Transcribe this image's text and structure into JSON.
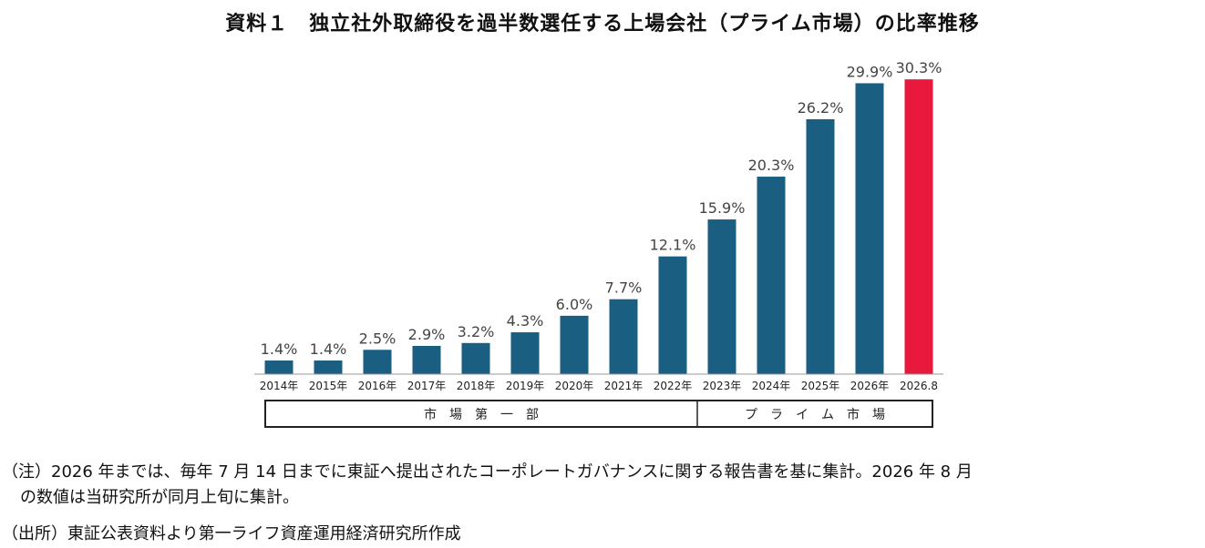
{
  "title": "資料１　独立社外取締役を過半数選任する上場会社（プライム市場）の比率推移",
  "chart_data": {
    "type": "bar",
    "categories": [
      "2014年",
      "2015年",
      "2016年",
      "2017年",
      "2018年",
      "2019年",
      "2020年",
      "2021年",
      "2022年",
      "2023年",
      "2024年",
      "2025年",
      "2026年",
      "2026.8"
    ],
    "values": [
      1.4,
      1.4,
      2.5,
      2.9,
      3.2,
      4.3,
      6.0,
      7.7,
      12.1,
      15.9,
      20.3,
      26.2,
      29.9,
      30.3
    ],
    "data_labels": [
      "1.4%",
      "1.4%",
      "2.5%",
      "2.9%",
      "3.2%",
      "4.3%",
      "6.0%",
      "7.7%",
      "12.1%",
      "15.9%",
      "20.3%",
      "26.2%",
      "29.9%",
      "30.3%"
    ],
    "highlight_index": 13,
    "colors": {
      "bar": "#1a5e82",
      "highlight": "#e8193c"
    },
    "ylim": [
      0,
      32
    ],
    "grid": false,
    "segments": [
      {
        "label": "市　場　第　一　部",
        "from_index": 0,
        "to_index": 8
      },
      {
        "label": "プ　ラ　イ　ム　市　場",
        "from_index": 9,
        "to_index": 13
      }
    ]
  },
  "notes": {
    "note_line1": "（注）2026 年までは、毎年 7 月 14 日までに東証へ提出されたコーポレートガバナンスに関する報告書を基に集計。2026 年 8 月",
    "note_line2": "の数値は当研究所が同月上旬に集計。",
    "source": "（出所）東証公表資料より第一ライフ資産運用経済研究所作成"
  }
}
